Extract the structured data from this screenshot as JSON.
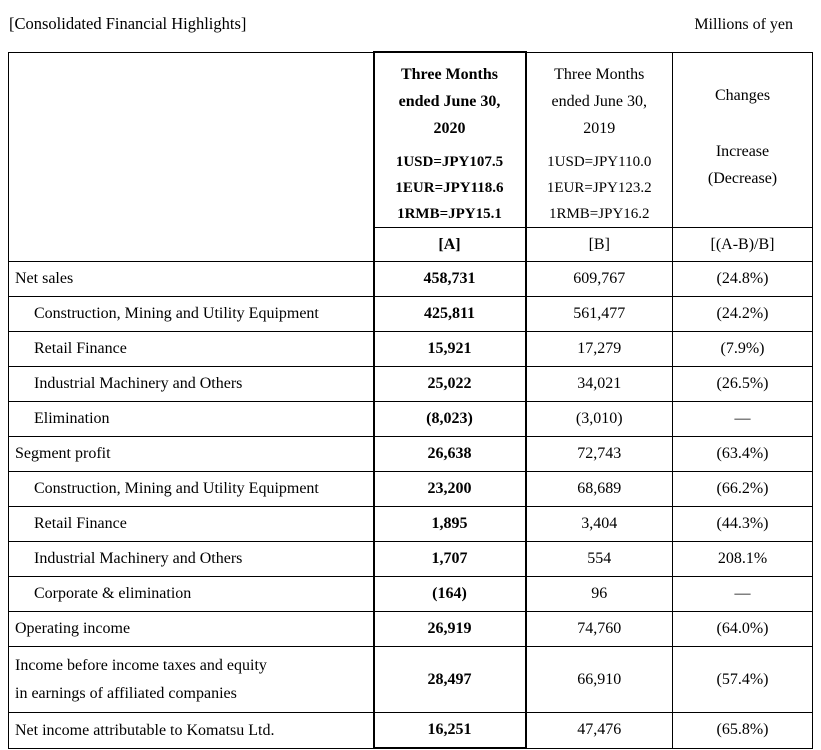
{
  "page": {
    "title": "[Consolidated Financial Highlights]",
    "unit_label": "Millions of yen"
  },
  "colors": {
    "background": "#ffffff",
    "text": "#000000",
    "border": "#000000"
  },
  "table": {
    "columns": {
      "current": {
        "period_lines": [
          "Three Months",
          "ended June 30,",
          "2020"
        ],
        "rates": [
          "1USD=JPY107.5",
          "1EUR=JPY118.6",
          "1RMB=JPY15.1"
        ],
        "tag": "[A]"
      },
      "prior": {
        "period_lines": [
          "Three Months",
          "ended June 30,",
          "2019"
        ],
        "rates": [
          "1USD=JPY110.0",
          "1EUR=JPY123.2",
          "1RMB=JPY16.2"
        ],
        "tag": "[B]"
      },
      "changes": {
        "label": "Changes",
        "sublabel_lines": [
          "Increase",
          "(Decrease)"
        ],
        "tag": "[(A-B)/B]"
      }
    },
    "rows": [
      {
        "label": "Net sales",
        "indent": false,
        "tall": false,
        "a": "458,731",
        "b": "609,767",
        "change": "(24.8%)"
      },
      {
        "label": "Construction, Mining and Utility Equipment",
        "indent": true,
        "tall": false,
        "a": "425,811",
        "b": "561,477",
        "change": "(24.2%)"
      },
      {
        "label": "Retail Finance",
        "indent": true,
        "tall": false,
        "a": "15,921",
        "b": "17,279",
        "change": "(7.9%)"
      },
      {
        "label": "Industrial Machinery and Others",
        "indent": true,
        "tall": false,
        "a": "25,022",
        "b": "34,021",
        "change": "(26.5%)"
      },
      {
        "label": "Elimination",
        "indent": true,
        "tall": false,
        "a": "(8,023)",
        "b": "(3,010)",
        "change": "—"
      },
      {
        "label": "Segment profit",
        "indent": false,
        "tall": false,
        "a": "26,638",
        "b": "72,743",
        "change": "(63.4%)"
      },
      {
        "label": "Construction, Mining and Utility Equipment",
        "indent": true,
        "tall": false,
        "a": "23,200",
        "b": "68,689",
        "change": "(66.2%)"
      },
      {
        "label": "Retail Finance",
        "indent": true,
        "tall": false,
        "a": "1,895",
        "b": "3,404",
        "change": "(44.3%)"
      },
      {
        "label": "Industrial Machinery and Others",
        "indent": true,
        "tall": false,
        "a": "1,707",
        "b": "554",
        "change": "208.1%"
      },
      {
        "label": "Corporate & elimination",
        "indent": true,
        "tall": false,
        "a": "(164)",
        "b": "96",
        "change": "—"
      },
      {
        "label": "Operating income",
        "indent": false,
        "tall": false,
        "a": "26,919",
        "b": "74,760",
        "change": "(64.0%)"
      },
      {
        "label": "Income before income taxes and equity\nin earnings of affiliated companies",
        "indent": false,
        "tall": true,
        "a": "28,497",
        "b": "66,910",
        "change": "(57.4%)"
      },
      {
        "label": "Net income attributable to Komatsu Ltd.",
        "indent": false,
        "tall": false,
        "a": "16,251",
        "b": "47,476",
        "change": "(65.8%)"
      }
    ]
  }
}
